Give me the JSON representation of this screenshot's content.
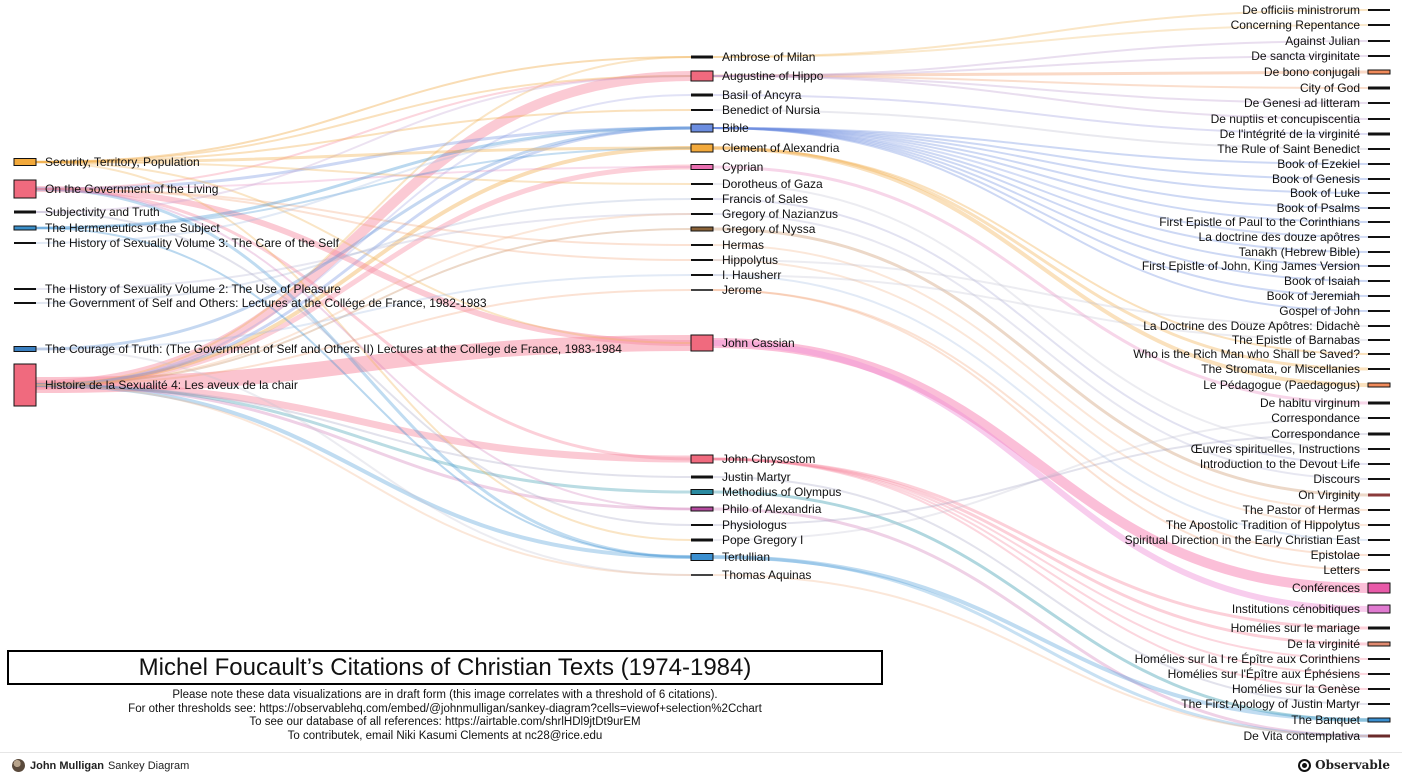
{
  "diagram": {
    "sources": [
      {
        "label": "Security, Territory, Population",
        "color": "#f2a93b"
      },
      {
        "label": "On the Government of the Living",
        "color": "#f06a7e"
      },
      {
        "label": "Subjectivity and Truth",
        "color": "#111111"
      },
      {
        "label": "The Hermeneutics of the Subject",
        "color": "#3a8fc9"
      },
      {
        "label": "The History of Sexuality Volume 3: The Care of the Self",
        "color": "#111111"
      },
      {
        "label": "The History of Sexuality Volume 2: The Use of Pleasure",
        "color": "#111111"
      },
      {
        "label": "The Government of Self and Others: Lectures at the Collége de France, 1982-1983",
        "color": "#111111"
      },
      {
        "label": "The Courage of Truth: (The Government of Self and Others II) Lectures at the College de France, 1983-1984",
        "color": "#3a7fc0"
      },
      {
        "label": "Histoire de la Sexualité 4: Les aveux de la chair",
        "color": "#f06a7e"
      }
    ],
    "authors": [
      {
        "label": "Ambrose of Milan",
        "color": "#111111"
      },
      {
        "label": "Augustine of Hippo",
        "color": "#f06a7e"
      },
      {
        "label": "Basil of Ancyra",
        "color": "#111111"
      },
      {
        "label": "Benedict of Nursia",
        "color": "#111111"
      },
      {
        "label": "Bible",
        "color": "#6b8de0"
      },
      {
        "label": "Clement of Alexandria",
        "color": "#f2a93b"
      },
      {
        "label": "Cyprian",
        "color": "#e96fb0"
      },
      {
        "label": "Dorotheus of Gaza",
        "color": "#111111"
      },
      {
        "label": "Francis of Sales",
        "color": "#111111"
      },
      {
        "label": "Gregory of Nazianzus",
        "color": "#111111"
      },
      {
        "label": "Gregory of Nyssa",
        "color": "#8a6238"
      },
      {
        "label": "Hermas",
        "color": "#111111"
      },
      {
        "label": "Hippolytus",
        "color": "#111111"
      },
      {
        "label": "I. Hausherr",
        "color": "#111111"
      },
      {
        "label": "Jerome",
        "color": "#444444"
      },
      {
        "label": "John Cassian",
        "color": "#f06a7e"
      },
      {
        "label": "John Chrysostom",
        "color": "#f06a7e"
      },
      {
        "label": "Justin Martyr",
        "color": "#111111"
      },
      {
        "label": "Methodius of Olympus",
        "color": "#2a8aa0"
      },
      {
        "label": "Philo of Alexandria",
        "color": "#b44a9e"
      },
      {
        "label": "Physiologus",
        "color": "#111111"
      },
      {
        "label": "Pope Gregory I",
        "color": "#111111"
      },
      {
        "label": "Tertullian",
        "color": "#3a8fd0"
      },
      {
        "label": "Thomas Aquinas",
        "color": "#444444"
      }
    ],
    "works": [
      {
        "label": "De officiis ministrorum",
        "color": "#111111"
      },
      {
        "label": "Concerning Repentance",
        "color": "#111111"
      },
      {
        "label": "Against Julian",
        "color": "#111111"
      },
      {
        "label": "De sancta virginitate",
        "color": "#111111"
      },
      {
        "label": "De bono conjugali",
        "color": "#f08a5a"
      },
      {
        "label": "City of God",
        "color": "#111111"
      },
      {
        "label": "De Genesi ad litteram",
        "color": "#111111"
      },
      {
        "label": "De nuptiis et concupiscentia",
        "color": "#111111"
      },
      {
        "label": "De l'intégrité de la virginité",
        "color": "#111111"
      },
      {
        "label": "The Rule of Saint Benedict",
        "color": "#111111"
      },
      {
        "label": "Book of Ezekiel",
        "color": "#111111"
      },
      {
        "label": "Book of Genesis",
        "color": "#111111"
      },
      {
        "label": "Book of Luke",
        "color": "#111111"
      },
      {
        "label": "Book of Psalms",
        "color": "#111111"
      },
      {
        "label": "First Epistle of Paul to the Corinthians",
        "color": "#111111"
      },
      {
        "label": "La doctrine des douze apôtres",
        "color": "#111111"
      },
      {
        "label": "Tanakh (Hebrew Bible)",
        "color": "#111111"
      },
      {
        "label": "First Epistle of John, King James Version",
        "color": "#111111"
      },
      {
        "label": "Book of Isaiah",
        "color": "#111111"
      },
      {
        "label": "Book of Jeremiah",
        "color": "#111111"
      },
      {
        "label": "Gospel of John",
        "color": "#111111"
      },
      {
        "label": "La Doctrine des Douze Apôtres: Didachè",
        "color": "#111111"
      },
      {
        "label": "The Epistle of Barnabas",
        "color": "#111111"
      },
      {
        "label": "Who is the Rich Man who Shall be Saved?",
        "color": "#111111"
      },
      {
        "label": "The Stromata, or Miscellanies",
        "color": "#111111"
      },
      {
        "label": "Le Pédagogue (Paedagogus)",
        "color": "#f08a5a"
      },
      {
        "label": "De habitu virginum",
        "color": "#111111"
      },
      {
        "label": "Correspondance",
        "color": "#111111"
      },
      {
        "label": "Correspondance",
        "color": "#111111"
      },
      {
        "label": "Œuvres spirituelles, Instructions",
        "color": "#111111"
      },
      {
        "label": "Introduction to the Devout Life",
        "color": "#111111"
      },
      {
        "label": "Discours",
        "color": "#111111"
      },
      {
        "label": "On Virginity",
        "color": "#8a3a3a"
      },
      {
        "label": "The Pastor of Hermas",
        "color": "#111111"
      },
      {
        "label": "The Apostolic Tradition of Hippolytus",
        "color": "#111111"
      },
      {
        "label": "Spiritual Direction in the Early Christian East",
        "color": "#111111"
      },
      {
        "label": "Epistolae",
        "color": "#111111"
      },
      {
        "label": "Letters",
        "color": "#111111"
      },
      {
        "label": "Conférences",
        "color": "#e85aa8"
      },
      {
        "label": "Institutions cénobitiques",
        "color": "#e07ad0"
      },
      {
        "label": "Homélies sur le mariage",
        "color": "#111111"
      },
      {
        "label": "De la virginité",
        "color": "#e08a70"
      },
      {
        "label": "Homélies sur la I re Épître aux Corinthiens",
        "color": "#111111"
      },
      {
        "label": "Homélies sur l'Épître aux Éphésiens",
        "color": "#111111"
      },
      {
        "label": "Homélies sur la Genèse",
        "color": "#111111"
      },
      {
        "label": "The First Apology of Justin Martyr",
        "color": "#111111"
      },
      {
        "label": "The Banquet",
        "color": "#3a8fd0"
      },
      {
        "label": "De Vita contemplativa",
        "color": "#6a2a2a"
      }
    ]
  },
  "title": "Michel Foucault’s Citations of Christian Texts (1974-1984)",
  "notes": [
    "Please note these data visualizations are in draft form (this image correlates with a threshold of 6 citations).",
    "For other thresholds see: https://observablehq.com/embed/@johnmulligan/sankey-diagram?cells=viewof+selection%2Cchart",
    "To see our database of all references: https://airtable.com/shrlHDl9jtDt9urEM",
    "To contributek, email Niki Kasumi Clements at nc28@rice.edu"
  ],
  "footer": {
    "author_name": "John Mulligan",
    "notebook_name": "Sankey Diagram",
    "brand": "Observable"
  }
}
